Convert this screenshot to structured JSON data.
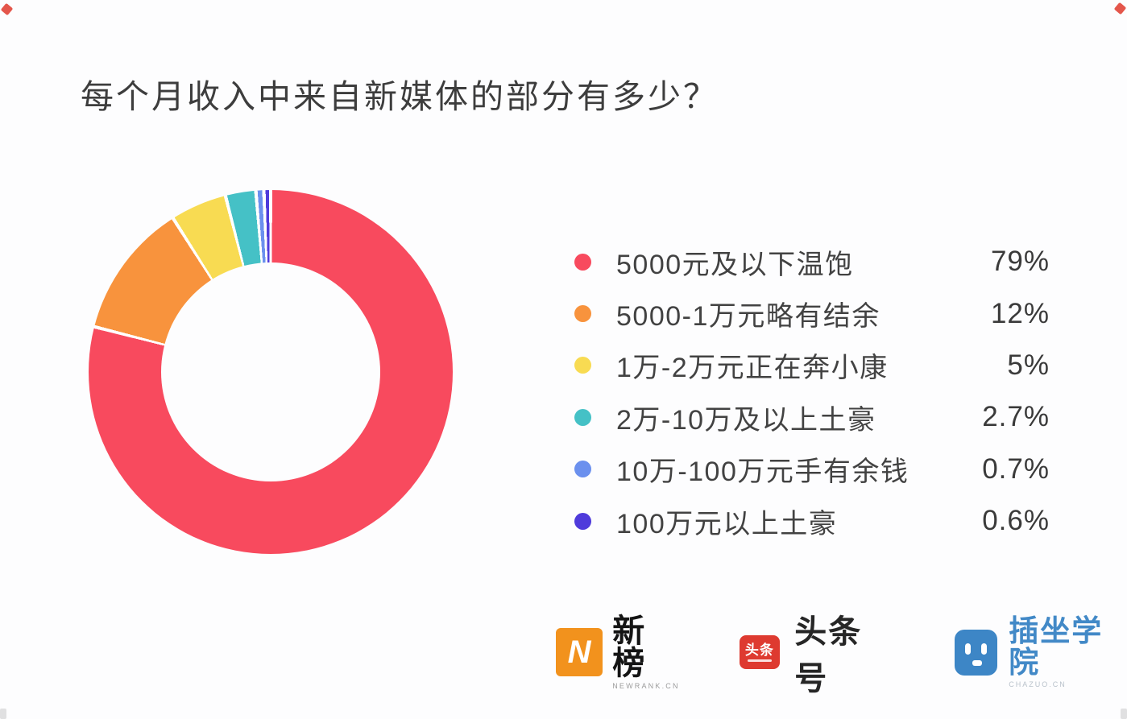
{
  "title": "每个月收入中来自新媒体的部分有多少？",
  "chart_data": {
    "type": "pie",
    "subtype": "donut",
    "title": "每个月收入中来自新媒体的部分有多少？",
    "categories": [
      "5000元及以下温饱",
      "5000-1万元略有结余",
      "1万-2万元正在奔小康",
      "2万-10万及以上土豪",
      "10万-100万元手有余钱",
      "100万元以上土豪"
    ],
    "values": [
      79,
      12,
      5,
      2.7,
      0.7,
      0.6
    ],
    "value_labels": [
      "79%",
      "12%",
      "5%",
      "2.7%",
      "0.7%",
      "0.6%"
    ],
    "colors": [
      "#F84A5E",
      "#F8933D",
      "#F8DB52",
      "#45C1C6",
      "#6B90EE",
      "#4F3BDB"
    ],
    "start_angle_deg": 0,
    "direction": "clockwise",
    "legend_position": "right",
    "gap_percent": 0.15,
    "donut_hole_ratio": 0.6
  },
  "legend": {
    "items": [
      {
        "label": "5000元及以下温饱",
        "value_label": "79%",
        "color": "#F84A5E"
      },
      {
        "label": "5000-1万元略有结余",
        "value_label": "12%",
        "color": "#F8933D"
      },
      {
        "label": "1万-2万元正在奔小康",
        "value_label": "5%",
        "color": "#F8DB52"
      },
      {
        "label": "2万-10万及以上土豪",
        "value_label": "2.7%",
        "color": "#45C1C6"
      },
      {
        "label": "10万-100万元手有余钱",
        "value_label": "0.7%",
        "color": "#6B90EE"
      },
      {
        "label": "100万元以上土豪",
        "value_label": "0.6%",
        "color": "#4F3BDB"
      }
    ]
  },
  "footer": {
    "logos": [
      {
        "name": "新榜",
        "subtext": "NEWRANK.CN",
        "icon_text": "N",
        "icon_color": "#F2921D",
        "text_color": "#141414"
      },
      {
        "name": "头条号",
        "icon_text": "头条",
        "icon_color": "#DE3A30",
        "text_color": "#262626"
      },
      {
        "name": "插坐学院",
        "subtext": "CHAZUO.CN",
        "icon_color": "#3D86C6",
        "text_color": "#4289C7"
      }
    ]
  }
}
